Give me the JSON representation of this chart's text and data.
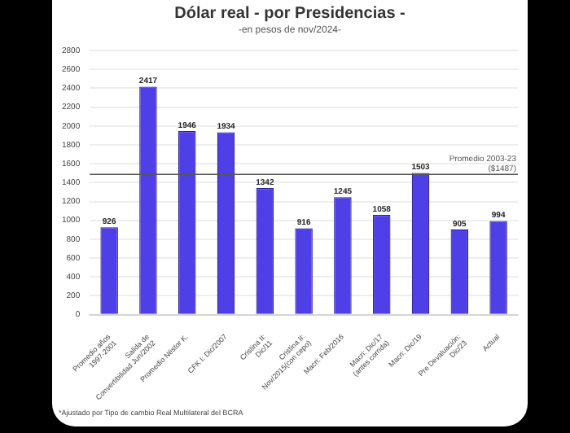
{
  "chart_data": {
    "type": "bar",
    "title": "Dólar real - por Presidencias -",
    "subtitle": "-en pesos de nov/2024-",
    "categories": [
      "Promedio años 1997-2001",
      "Salida de Convertibilidad Jun/2002",
      "Promedio Néstor K.",
      "CFK I: Dic/2007",
      "Cristina II: Dic/11",
      "Cristina II: Nov/2015(con cepo)",
      "Macri: Feb/2016",
      "Macri: Dic/17 (antes corrida)",
      "Macri: Dic/19",
      "Pre Devaluación: Dic/23",
      "Actual"
    ],
    "values": [
      926,
      2417,
      1946,
      1934,
      1342,
      916,
      1245,
      1058,
      1503,
      905,
      994
    ],
    "color": "#4f3fe6",
    "data_labels": true,
    "ylim": [
      0,
      2800
    ],
    "yticks": [
      0,
      200,
      400,
      600,
      800,
      1000,
      1200,
      1400,
      1600,
      1800,
      2000,
      2200,
      2400,
      2600,
      2800
    ],
    "grid": "y",
    "legend": false,
    "ref_lines": [
      {
        "axis": "y",
        "value": 1487,
        "label": "Promedio 2003-23 ($1487)",
        "color": "#555555"
      }
    ],
    "annotations": [
      "*Ajustado por Tipo de cambio Real Multilateral del BCRA"
    ]
  }
}
